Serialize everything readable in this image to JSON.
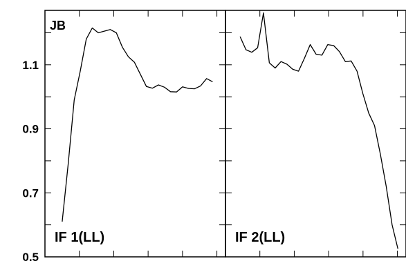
{
  "chart_data": {
    "type": "line",
    "corner_label": "JB",
    "ylim": [
      0.5,
      1.27
    ],
    "yticks": [
      {
        "value": 0.5,
        "label": "0.5"
      },
      {
        "value": 0.7,
        "label": "0.7"
      },
      {
        "value": 0.9,
        "label": "0.9"
      },
      {
        "value": 1.1,
        "label": "1.1"
      }
    ],
    "xlim": [
      0,
      21
    ],
    "panels": [
      {
        "label": "IF 1(LL)",
        "values": [
          0.61,
          0.79,
          0.99,
          1.08,
          1.18,
          1.215,
          1.2,
          1.205,
          1.21,
          1.2,
          1.155,
          1.125,
          1.108,
          1.07,
          1.032,
          1.027,
          1.037,
          1.03,
          1.016,
          1.015,
          1.031,
          1.026,
          1.025,
          1.034,
          1.057,
          1.047
        ],
        "xstart": 2.0,
        "xstep": 0.7
      },
      {
        "label": "IF 2(LL)",
        "values": [
          1.188,
          1.147,
          1.139,
          1.153,
          1.262,
          1.106,
          1.09,
          1.11,
          1.102,
          1.086,
          1.08,
          1.12,
          1.163,
          1.133,
          1.13,
          1.163,
          1.16,
          1.141,
          1.11,
          1.112,
          1.08,
          1.01,
          0.949,
          0.91,
          0.82,
          0.72,
          0.6,
          0.525
        ],
        "xstart": 1.7,
        "xstep": 0.68
      }
    ]
  }
}
